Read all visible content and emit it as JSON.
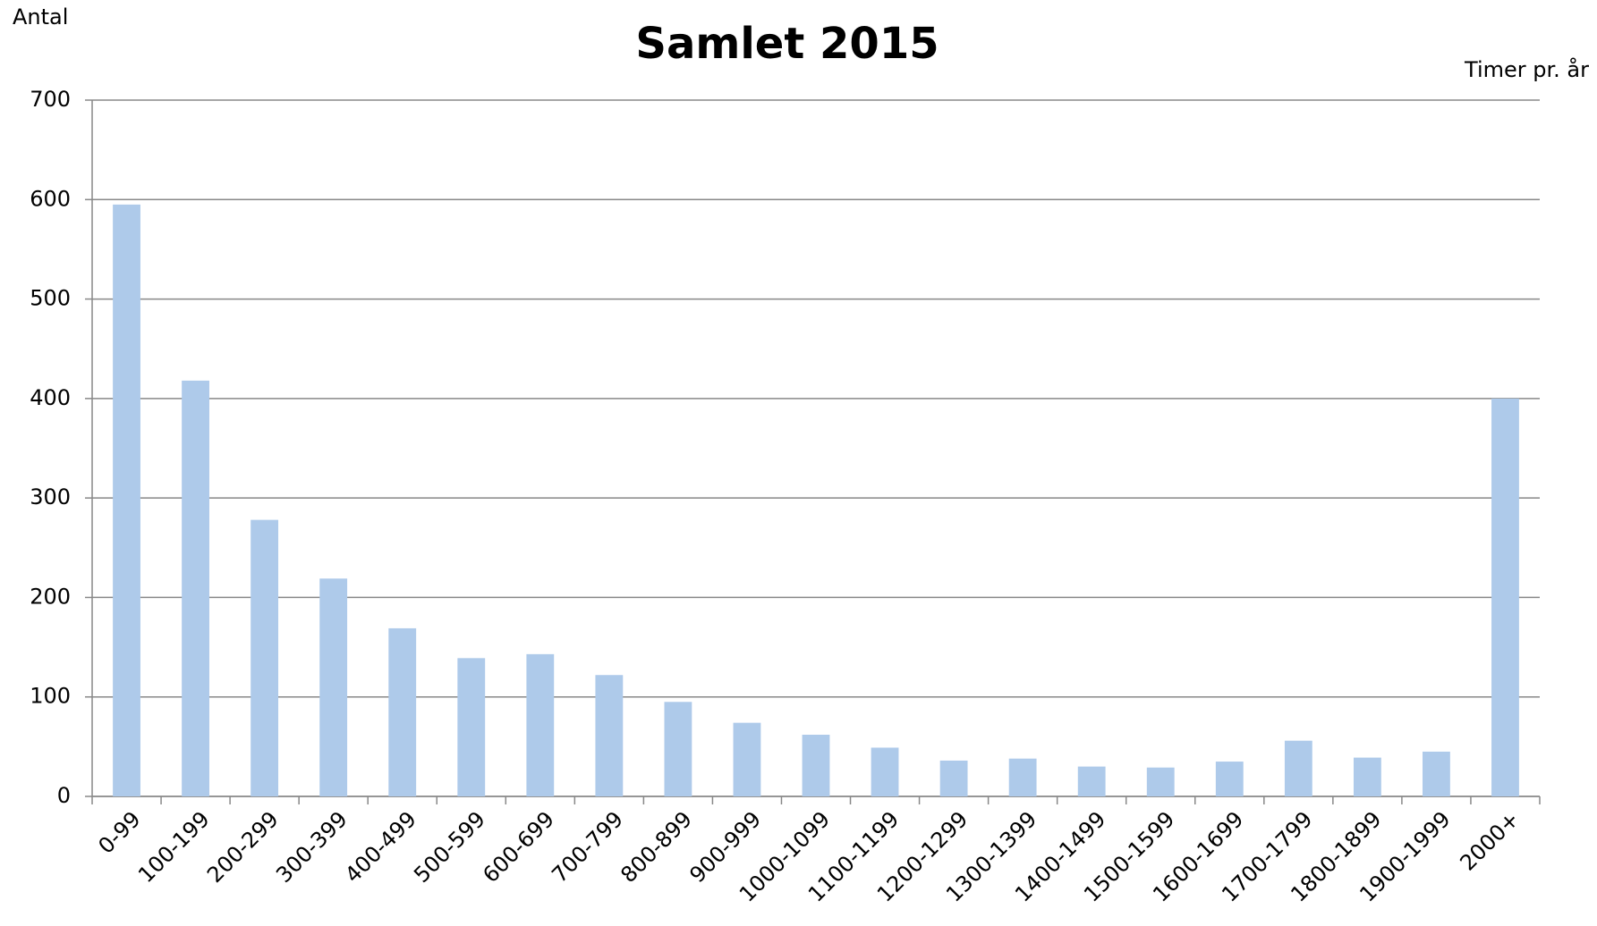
{
  "chart_data": {
    "type": "bar",
    "title": "Samlet 2015",
    "y_label": "Antal",
    "x_label": "Timer pr. år",
    "categories": [
      "0-99",
      "100-199",
      "200-299",
      "300-399",
      "400-499",
      "500-599",
      "600-699",
      "700-799",
      "800-899",
      "900-999",
      "1000-1099",
      "1100-1199",
      "1200-1299",
      "1300-1399",
      "1400-1499",
      "1500-1599",
      "1600-1699",
      "1700-1799",
      "1800-1899",
      "1900-1999",
      "2000+"
    ],
    "values": [
      595,
      418,
      278,
      219,
      169,
      139,
      143,
      122,
      95,
      74,
      62,
      49,
      36,
      38,
      30,
      29,
      35,
      56,
      39,
      45,
      400
    ],
    "color": "#aecaea",
    "ylim": [
      0,
      700
    ],
    "yticks": [
      0,
      100,
      200,
      300,
      400,
      500,
      600,
      700
    ],
    "grid": true
  }
}
